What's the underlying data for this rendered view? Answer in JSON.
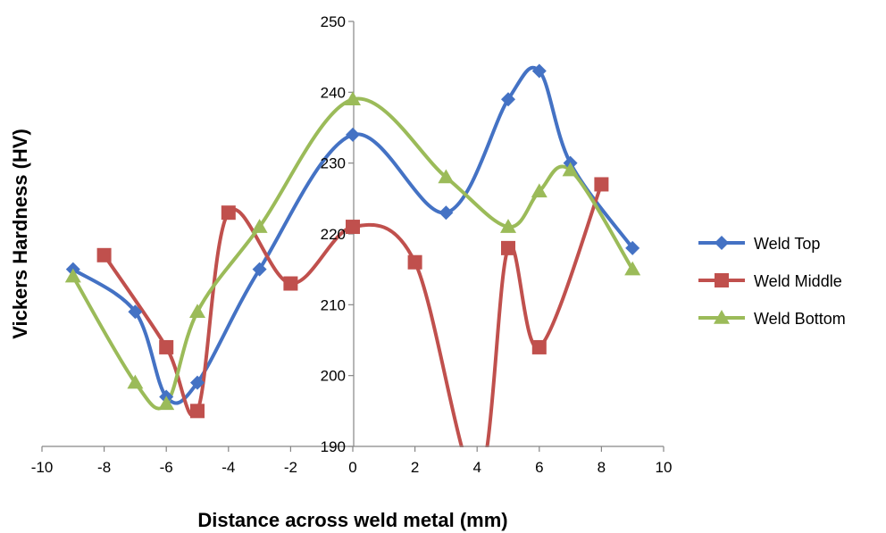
{
  "chart_data": {
    "type": "line",
    "title": "",
    "xlabel": "Distance across weld metal (mm)",
    "ylabel": "Vickers Hardness (HV)",
    "xlim": [
      -10,
      10
    ],
    "ylim": [
      190,
      250
    ],
    "x_ticks": [
      -10,
      -8,
      -6,
      -4,
      -2,
      0,
      2,
      4,
      6,
      8,
      10
    ],
    "y_ticks": [
      190,
      200,
      210,
      220,
      230,
      240,
      250
    ],
    "x_tick_labels": [
      "-10",
      "-8",
      "-6",
      "-4",
      "-2",
      "0",
      "2",
      "4",
      "6",
      "8",
      "10"
    ],
    "y_tick_labels": [
      "190",
      "200",
      "210",
      "220",
      "230",
      "240",
      "250"
    ],
    "grid": false,
    "smooth": true,
    "legend_position": "right",
    "series": [
      {
        "name": "Weld Top",
        "color": "#4472C4",
        "marker": "diamond",
        "points": [
          [
            -9,
            215
          ],
          [
            -7,
            209
          ],
          [
            -6,
            197
          ],
          [
            -5,
            199
          ],
          [
            -3,
            215
          ],
          [
            0,
            234
          ],
          [
            3,
            223
          ],
          [
            5,
            239
          ],
          [
            6,
            243
          ],
          [
            7,
            230
          ],
          [
            9,
            218
          ]
        ]
      },
      {
        "name": "Weld Middle",
        "color": "#C0504D",
        "marker": "square",
        "points": [
          [
            -8,
            217
          ],
          [
            -6,
            204
          ],
          [
            -5,
            195
          ],
          [
            -4,
            223
          ],
          [
            -2,
            213
          ],
          [
            0,
            221
          ],
          [
            2,
            216
          ],
          [
            4,
            185
          ],
          [
            5,
            218
          ],
          [
            6,
            204
          ],
          [
            8,
            227
          ]
        ]
      },
      {
        "name": "Weld Bottom",
        "color": "#9BBB59",
        "marker": "triangle",
        "points": [
          [
            -9,
            214
          ],
          [
            -7,
            199
          ],
          [
            -6,
            196
          ],
          [
            -5,
            209
          ],
          [
            -3,
            221
          ],
          [
            0,
            239
          ],
          [
            3,
            228
          ],
          [
            5,
            221
          ],
          [
            6,
            226
          ],
          [
            7,
            229
          ],
          [
            9,
            215
          ]
        ]
      }
    ]
  }
}
